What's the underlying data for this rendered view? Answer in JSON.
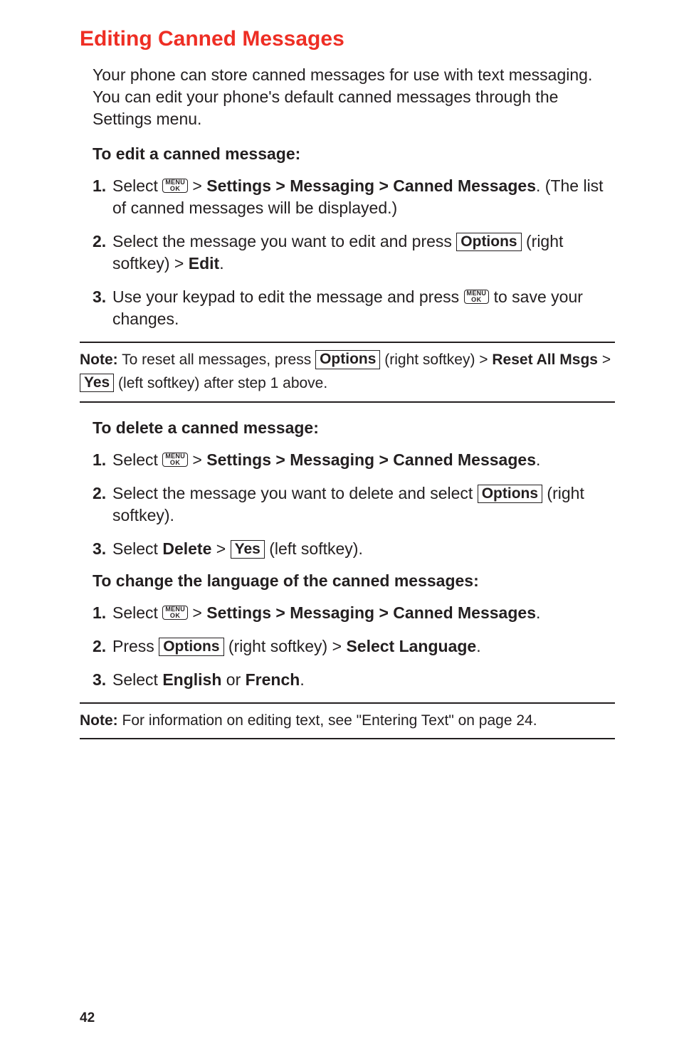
{
  "heading": "Editing Canned Messages",
  "intro": "Your phone can store canned messages for use with text messaging. You can edit your phone's default canned messages through the Settings menu.",
  "menuKey": {
    "top": "MENU",
    "bottom": "OK"
  },
  "labels": {
    "options": "Options",
    "yes": "Yes",
    "settings": "Settings",
    "messaging": "Messaging",
    "canned": "Canned Messages",
    "edit": "Edit",
    "resetAll": "Reset All Msgs",
    "delete": "Delete",
    "selectLang": "Select Language",
    "english": "English",
    "french": "French"
  },
  "editSection": {
    "title": "To edit a canned message:",
    "step1_a": "Select ",
    "step1_b": " > ",
    "step1_c": ". (The list of canned messages will be displayed.)",
    "step2_a": "Select the message you want to edit and press ",
    "step2_b": " (right softkey) > ",
    "step2_c": ".",
    "step3_a": "Use your keypad to edit the message and press ",
    "step3_b": " to save your changes."
  },
  "note1": {
    "prefix": "Note:",
    "a": " To reset all messages, press ",
    "b": " (right softkey) > ",
    "c": " > ",
    "d": " (left softkey) after step 1 above."
  },
  "deleteSection": {
    "title": "To delete a canned message:",
    "step1_a": "Select ",
    "step1_b": " > ",
    "step1_c": ".",
    "step2_a": "Select the message you want to delete and select ",
    "step2_b": " (right softkey).",
    "step3_a": "Select ",
    "step3_b": " > ",
    "step3_c": " (left softkey)."
  },
  "langSection": {
    "title": "To change the language of the canned messages:",
    "step1_a": "Select ",
    "step1_b": " > ",
    "step1_c": ".",
    "step2_a": "Press ",
    "step2_b": " (right softkey) > ",
    "step2_c": ".",
    "step3_a": "Select ",
    "step3_b": " or ",
    "step3_c": "."
  },
  "note2": {
    "prefix": "Note:",
    "text": " For information on editing text, see \"Entering Text\" on page 24."
  },
  "pageNumber": "42"
}
